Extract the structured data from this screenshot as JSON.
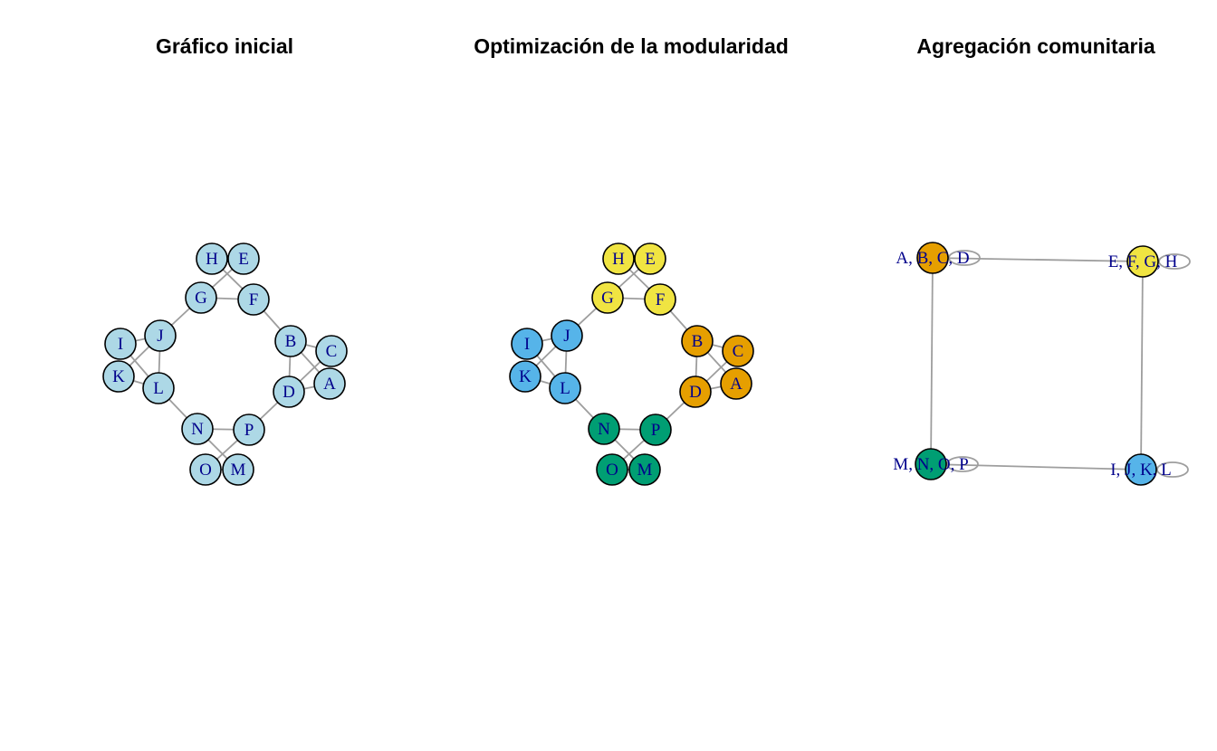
{
  "panels": [
    {
      "title": "Gráfico inicial"
    },
    {
      "title": "Optimización de la modularidad"
    },
    {
      "title": "Agregación comunitaria"
    }
  ],
  "colors": {
    "initial": "#add8e6",
    "community_abcd": "#e69f00",
    "community_efgh": "#f0e442",
    "community_ijkl": "#56b4e9",
    "community_mnop": "#009e73",
    "edge": "#9e9e9e",
    "label": "#00008b"
  },
  "graph": {
    "nodes": [
      {
        "id": "A",
        "community": "community_abcd"
      },
      {
        "id": "B",
        "community": "community_abcd"
      },
      {
        "id": "C",
        "community": "community_abcd"
      },
      {
        "id": "D",
        "community": "community_abcd"
      },
      {
        "id": "E",
        "community": "community_efgh"
      },
      {
        "id": "F",
        "community": "community_efgh"
      },
      {
        "id": "G",
        "community": "community_efgh"
      },
      {
        "id": "H",
        "community": "community_efgh"
      },
      {
        "id": "I",
        "community": "community_ijkl"
      },
      {
        "id": "J",
        "community": "community_ijkl"
      },
      {
        "id": "K",
        "community": "community_ijkl"
      },
      {
        "id": "L",
        "community": "community_ijkl"
      },
      {
        "id": "M",
        "community": "community_mnop"
      },
      {
        "id": "N",
        "community": "community_mnop"
      },
      {
        "id": "O",
        "community": "community_mnop"
      },
      {
        "id": "P",
        "community": "community_mnop"
      }
    ],
    "edges": [
      [
        "H",
        "E"
      ],
      [
        "H",
        "F"
      ],
      [
        "E",
        "G"
      ],
      [
        "G",
        "F"
      ],
      [
        "G",
        "J"
      ],
      [
        "F",
        "B"
      ],
      [
        "B",
        "C"
      ],
      [
        "B",
        "A"
      ],
      [
        "B",
        "D"
      ],
      [
        "C",
        "D"
      ],
      [
        "D",
        "A"
      ],
      [
        "I",
        "J"
      ],
      [
        "I",
        "L"
      ],
      [
        "K",
        "J"
      ],
      [
        "K",
        "L"
      ],
      [
        "J",
        "L"
      ],
      [
        "L",
        "N"
      ],
      [
        "D",
        "P"
      ],
      [
        "N",
        "P"
      ],
      [
        "N",
        "M"
      ],
      [
        "O",
        "P"
      ],
      [
        "O",
        "M"
      ]
    ]
  },
  "aggregated": {
    "nodes": [
      {
        "id": "abcd",
        "label": "A, B, C, D",
        "community": "community_abcd"
      },
      {
        "id": "efgh",
        "label": "E, F, G, H",
        "community": "community_efgh"
      },
      {
        "id": "mnop",
        "label": "M, N, O, P",
        "community": "community_mnop"
      },
      {
        "id": "ijkl",
        "label": "I, J, K, L",
        "community": "community_ijkl"
      }
    ],
    "edges": [
      [
        "abcd",
        "efgh"
      ],
      [
        "abcd",
        "mnop"
      ],
      [
        "efgh",
        "ijkl"
      ],
      [
        "mnop",
        "ijkl"
      ]
    ],
    "self_loops": [
      "abcd",
      "efgh",
      "mnop",
      "ijkl"
    ]
  }
}
